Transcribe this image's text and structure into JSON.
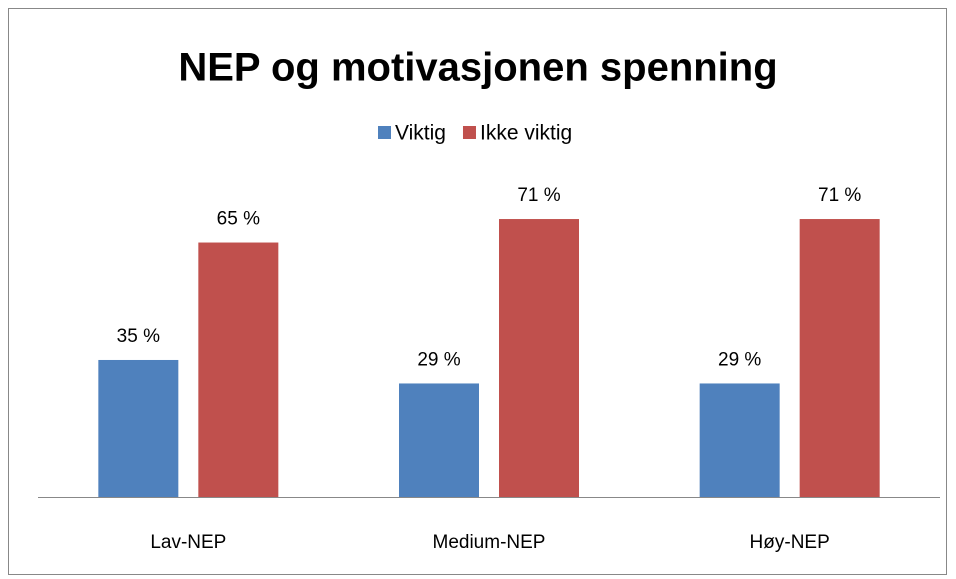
{
  "chart_data": {
    "type": "bar",
    "title": "NEP og motivasjonen spenning",
    "categories": [
      "Lav-NEP",
      "Medium-NEP",
      "Høy-NEP"
    ],
    "series": [
      {
        "name": "Viktig",
        "color": "#4f81bd",
        "values": [
          35,
          29,
          29
        ],
        "value_labels": [
          "35 %",
          "29 %",
          "29 %"
        ]
      },
      {
        "name": "Ikke viktig",
        "color": "#c0504d",
        "values": [
          65,
          71,
          71
        ],
        "value_labels": [
          "65 %",
          "71 %",
          "71 %"
        ]
      }
    ],
    "ylim": [
      0,
      100
    ],
    "legend": "top"
  }
}
